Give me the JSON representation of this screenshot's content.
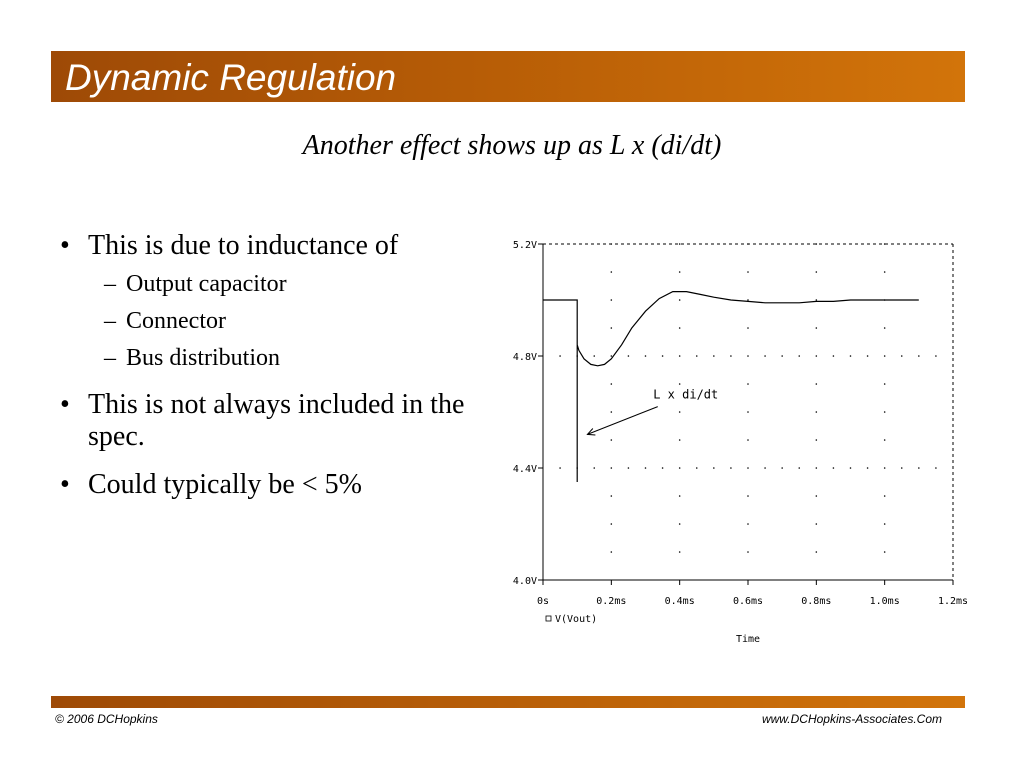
{
  "header": {
    "title": "Dynamic Regulation"
  },
  "subtitle": "Another effect shows up as L x (di/dt)",
  "bullets": [
    {
      "text": "This is due to inductance of",
      "sub": [
        "Output capacitor",
        "Connector",
        "Bus distribution"
      ]
    },
    {
      "text": "This is not always included in the spec."
    },
    {
      "text": "Could typically be < 5%"
    }
  ],
  "footer": {
    "left": "© 2006 DCHopkins",
    "right": "www.DCHopkins-Associates.Com"
  },
  "chart_data": {
    "type": "line",
    "xlabel": "Time",
    "ylabel": "",
    "xlim": [
      0,
      1.2
    ],
    "ylim": [
      4.0,
      5.2
    ],
    "x_ticks": [
      "0s",
      "0.2ms",
      "0.4ms",
      "0.6ms",
      "0.8ms",
      "1.0ms",
      "1.2ms"
    ],
    "y_ticks": [
      "4.0V",
      "4.4V",
      "4.8V",
      "5.2V"
    ],
    "grid": true,
    "legend": "below-left",
    "series": [
      {
        "name": "V(Vout)",
        "color": "#000000",
        "x": [
          0,
          0.1,
          0.1,
          0.1,
          0.1,
          0.105,
          0.12,
          0.14,
          0.16,
          0.18,
          0.2,
          0.23,
          0.26,
          0.3,
          0.34,
          0.38,
          0.42,
          0.46,
          0.5,
          0.55,
          0.6,
          0.65,
          0.7,
          0.75,
          0.8,
          0.85,
          0.9,
          0.95,
          1.0,
          1.1
        ],
        "y": [
          5.0,
          5.0,
          4.35,
          4.86,
          4.84,
          4.82,
          4.79,
          4.77,
          4.765,
          4.77,
          4.79,
          4.84,
          4.9,
          4.96,
          5.005,
          5.03,
          5.03,
          5.02,
          5.01,
          5.0,
          4.995,
          4.99,
          4.99,
          4.99,
          4.995,
          4.995,
          5.0,
          5.0,
          5.0,
          5.0
        ]
      }
    ],
    "annotations": [
      {
        "text": "L x di/dt",
        "x": 0.33,
        "y": 4.63,
        "arrow_to": [
          0.13,
          4.52
        ]
      }
    ]
  }
}
